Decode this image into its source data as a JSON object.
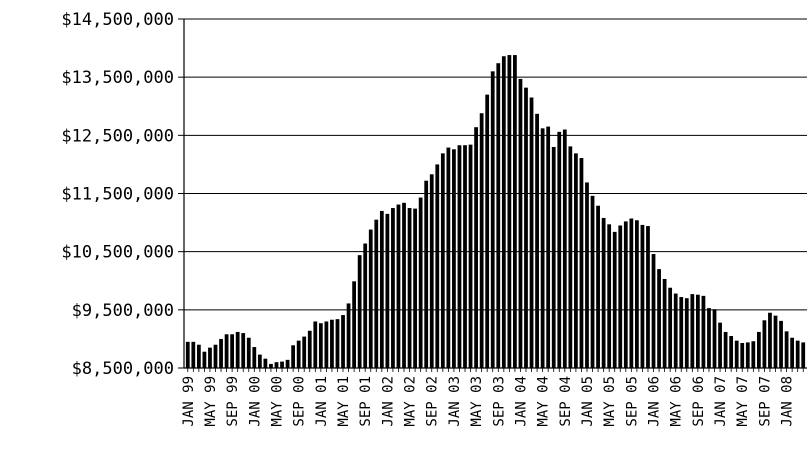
{
  "chart_data": {
    "type": "bar",
    "title": "",
    "xlabel": "",
    "ylabel": "",
    "ylim": [
      8500000,
      14500000
    ],
    "grid": true,
    "legend": "none",
    "bar_color": "#000000",
    "yticks": [
      "$8,500,000",
      "$9,500,000",
      "$10,500,000",
      "$11,500,000",
      "$12,500,000",
      "$13,500,000",
      "$14,500,000"
    ],
    "ytick_values": [
      8500000,
      9500000,
      10500000,
      11500000,
      12500000,
      13500000,
      14500000
    ],
    "xtick_labels": [
      "JAN 99",
      "MAY 99",
      "SEP 99",
      "JAN 00",
      "MAY 00",
      "SEP 00",
      "JAN 01",
      "MAY 01",
      "SEP 01",
      "JAN 02",
      "MAY 02",
      "SEP 02",
      "JAN 03",
      "MAY 03",
      "SEP 03",
      "JAN 04",
      "MAY 04",
      "SEP 04",
      "JAN 05",
      "MAY 05",
      "SEP 05",
      "JAN 06",
      "MAY 06",
      "SEP 06",
      "JAN 07",
      "MAY 07",
      "SEP 07",
      "JAN 08"
    ],
    "series": [
      {
        "values": [
          8950000,
          8950000,
          8900000,
          8780000,
          8850000,
          8900000,
          9000000,
          9080000,
          9080000,
          9120000,
          9100000,
          9020000,
          8860000,
          8730000,
          8660000,
          8570000,
          8600000,
          8610000,
          8640000,
          8890000,
          8970000,
          9040000,
          9140000,
          9300000,
          9270000,
          9300000,
          9330000,
          9340000,
          9410000,
          9610000,
          9990000,
          10440000,
          10640000,
          10880000,
          11050000,
          11200000,
          11150000,
          11250000,
          11310000,
          11340000,
          11250000,
          11240000,
          11430000,
          11720000,
          11830000,
          12000000,
          12190000,
          12290000,
          12260000,
          12330000,
          12330000,
          12340000,
          12640000,
          12880000,
          13200000,
          13600000,
          13740000,
          13860000,
          13880000,
          13880000,
          13470000,
          13320000,
          13150000,
          12870000,
          12620000,
          12650000,
          12300000,
          12560000,
          12600000,
          12310000,
          12190000,
          12110000,
          11690000,
          11460000,
          11290000,
          11080000,
          10970000,
          10840000,
          10950000,
          11020000,
          11070000,
          11040000,
          10960000,
          10940000,
          10460000,
          10200000,
          10030000,
          9880000,
          9780000,
          9720000,
          9700000,
          9770000,
          9760000,
          9740000,
          9530000,
          9510000,
          9280000,
          9120000,
          9050000,
          8970000,
          8930000,
          8940000,
          8960000,
          9120000,
          9320000,
          9450000,
          9400000,
          9310000,
          9130000,
          9020000,
          8970000,
          8940000
        ]
      }
    ]
  }
}
